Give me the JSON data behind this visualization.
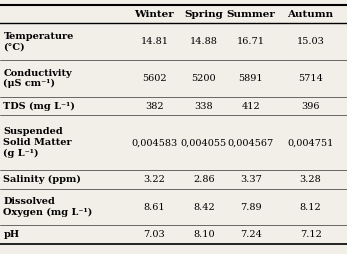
{
  "columns": [
    "",
    "Winter",
    "Spring",
    "Summer",
    "Autumn"
  ],
  "rows": [
    [
      "Temperature\n(°C)",
      "14.81",
      "14.88",
      "16.71",
      "15.03"
    ],
    [
      "Conductivity\n(μS cm⁻¹)",
      "5602",
      "5200",
      "5891",
      "5714"
    ],
    [
      "TDS (mg L⁻¹)",
      "382",
      "338",
      "412",
      "396"
    ],
    [
      "Suspended\nSolid Matter\n(g L⁻¹)",
      "0,004583",
      "0,004055",
      "0,004567",
      "0,004751"
    ],
    [
      "Salinity (ppm)",
      "3.22",
      "2.86",
      "3.37",
      "3.28"
    ],
    [
      "Dissolved\nOxygen (mg L⁻¹)",
      "8.61",
      "8.42",
      "7.89",
      "8.12"
    ],
    [
      "pH",
      "7.03",
      "8.10",
      "7.24",
      "7.12"
    ]
  ],
  "background_color": "#f2efe9",
  "font_size_header": 7.5,
  "font_size_data": 7.0,
  "fig_width": 3.47,
  "fig_height": 2.54,
  "dpi": 100
}
